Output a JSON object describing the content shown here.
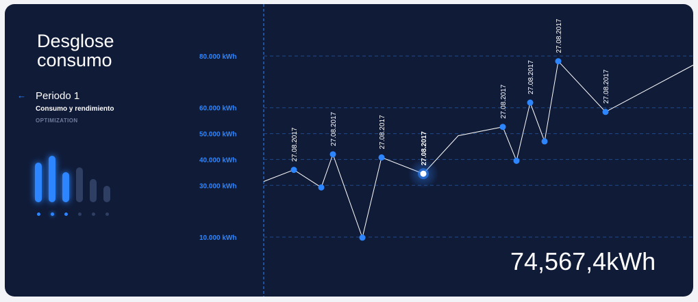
{
  "sidebar": {
    "title": "Desglose consumo",
    "period": "Periodo 1",
    "subtitle": "Consumo y rendimiento",
    "tag": "OPTIMIZATION",
    "mini_bars": [
      {
        "value": 0.85,
        "color": "#2d86ff",
        "active": false
      },
      {
        "value": 1.0,
        "color": "#2d86ff",
        "active": true
      },
      {
        "value": 0.65,
        "color": "#2d86ff",
        "active": false
      },
      {
        "value": 0.75,
        "color": "#2f3f63",
        "active": false
      },
      {
        "value": 0.5,
        "color": "#2f3f63",
        "active": false
      },
      {
        "value": 0.35,
        "color": "#2f3f63",
        "active": false
      }
    ]
  },
  "total": "74,567,4kWh",
  "colors": {
    "accent": "#2d86ff",
    "background": "#101b38",
    "grid": "#1f4a8a"
  },
  "chart_data": {
    "type": "line",
    "y_ticks": [
      {
        "value": 10000,
        "label": "10.000 kWh"
      },
      {
        "value": 30000,
        "label": "30.000 kWh"
      },
      {
        "value": 40000,
        "label": "40.000 kWh"
      },
      {
        "value": 50000,
        "label": "50.000 kWh"
      },
      {
        "value": 60000,
        "label": "60.000 kWh"
      },
      {
        "value": 80000,
        "label": "80.000 kWh"
      }
    ],
    "points": [
      {
        "v": 31500,
        "label": "",
        "marker": false
      },
      {
        "v": 36000,
        "label": "27.08.2017",
        "marker": true
      },
      {
        "v": 29200,
        "label": "",
        "marker": true
      },
      {
        "v": 42000,
        "label": "27.08.2017",
        "marker": true
      },
      {
        "v": 9800,
        "label": "",
        "marker": true
      },
      {
        "v": 40800,
        "label": "27.08.2017",
        "marker": true
      },
      {
        "v": 34500,
        "label": "27.08.2017",
        "marker": true,
        "selected": true
      },
      {
        "v": 49200,
        "label": "",
        "marker": false
      },
      {
        "v": 52600,
        "label": "27.08.2017",
        "marker": true
      },
      {
        "v": 39500,
        "label": "",
        "marker": true
      },
      {
        "v": 62000,
        "label": "27.08.2017",
        "marker": true
      },
      {
        "v": 47000,
        "label": "",
        "marker": true
      },
      {
        "v": 78000,
        "label": "27.08.2017",
        "marker": true
      },
      {
        "v": 58400,
        "label": "27.08.2017",
        "marker": true
      },
      {
        "v": 76500,
        "label": "",
        "marker": false
      }
    ]
  }
}
